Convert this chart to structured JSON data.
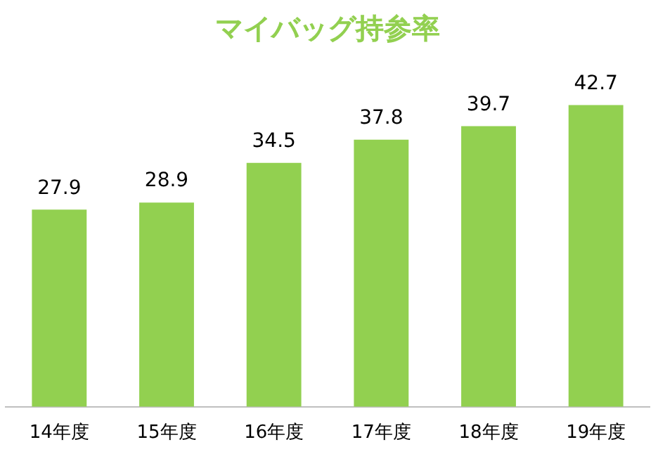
{
  "chart_data": {
    "type": "bar",
    "title": "マイバッグ持参率",
    "categories": [
      "14年度",
      "15年度",
      "16年度",
      "17年度",
      "18年度",
      "19年度"
    ],
    "values": [
      27.9,
      28.9,
      34.5,
      37.8,
      39.7,
      42.7
    ],
    "color": "#92d050",
    "data_labels": true,
    "grid": false,
    "legend": false
  }
}
